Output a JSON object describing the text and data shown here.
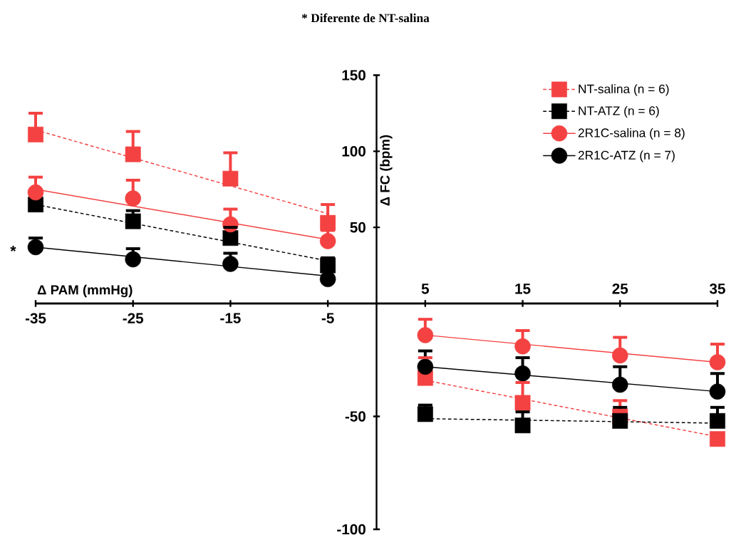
{
  "chart_data": [
    {
      "type": "scatter",
      "title": "* Diferente de NT-salina",
      "xlabel": "Δ PAM (mmHg)",
      "ylabel": "Δ FC (bpm)",
      "annotations": [
        {
          "text": "*",
          "x": -35,
          "y": 37
        }
      ],
      "xlim": [
        -35,
        35
      ],
      "ylim": [
        0,
        150
      ],
      "xticks": [
        -35,
        -25,
        -15,
        -5
      ],
      "yticks": [
        50,
        100,
        150
      ],
      "legend": "top right",
      "series": [
        {
          "name": "NT-salina (n = 6)",
          "color": "#f44242",
          "marker": "square",
          "line_style": "dashed",
          "x": [
            -35,
            -25,
            -15,
            -5
          ],
          "values": [
            111,
            98,
            82,
            53
          ],
          "errors": [
            [
              111,
              125
            ],
            [
              98,
              113
            ],
            [
              82,
              99
            ],
            [
              53,
              65
            ]
          ]
        },
        {
          "name": "NT-ATZ (n = 6)",
          "color": "#000000",
          "marker": "square",
          "line_style": "dashed",
          "x": [
            -35,
            -25,
            -15,
            -5
          ],
          "values": [
            65,
            54,
            43,
            25
          ],
          "errors": [
            null,
            [
              54,
              61
            ],
            [
              43,
              50
            ],
            [
              25,
              30
            ]
          ]
        },
        {
          "name": "2R1C-salina (n = 8)",
          "color": "#f44242",
          "marker": "circle",
          "line_style": "solid",
          "x": [
            -35,
            -25,
            -15,
            -5
          ],
          "values": [
            73,
            69,
            52,
            41
          ],
          "errors": [
            [
              73,
              83
            ],
            [
              69,
              81
            ],
            [
              52,
              62
            ],
            [
              41,
              48
            ]
          ]
        },
        {
          "name": "2R1C-ATZ (n = 7)",
          "color": "#000000",
          "marker": "circle",
          "line_style": "solid",
          "x": [
            -35,
            -25,
            -15,
            -5
          ],
          "values": [
            37,
            29,
            26,
            16
          ],
          "errors": [
            [
              37,
              43
            ],
            [
              29,
              36
            ],
            [
              26,
              33
            ],
            null
          ]
        },
        {
          "type": "line",
          "color": "#f44242",
          "line_style": "dashed",
          "x": [
            -35,
            -5
          ],
          "values": [
            114,
            59
          ]
        },
        {
          "type": "line",
          "color": "#000000",
          "line_style": "dashed",
          "x": [
            -35,
            -5
          ],
          "values": [
            65,
            28
          ]
        },
        {
          "type": "line",
          "color": "#f44242",
          "line_style": "solid",
          "x": [
            -35,
            -5
          ],
          "values": [
            75,
            42
          ]
        },
        {
          "type": "line",
          "color": "#000000",
          "line_style": "solid",
          "x": [
            -35,
            -5
          ],
          "values": [
            37,
            18
          ]
        }
      ]
    },
    {
      "type": "scatter",
      "xlim": [
        -35,
        35
      ],
      "ylim": [
        -100,
        0
      ],
      "xticks": [
        5,
        15,
        25,
        35
      ],
      "yticks": [
        -100,
        -50
      ],
      "series": [
        {
          "color": "#f44242",
          "marker": "square",
          "line_style": "dashed",
          "x": [
            5,
            15,
            25,
            35
          ],
          "values": [
            -33,
            -44,
            -50,
            -60
          ],
          "errors": [
            [
              -33,
              -24
            ],
            [
              -44,
              -35
            ],
            [
              -50,
              -43
            ],
            null
          ]
        },
        {
          "color": "#000000",
          "marker": "square",
          "line_style": "dashed",
          "x": [
            5,
            15,
            25,
            35
          ],
          "values": [
            -49,
            -54,
            -52,
            -52
          ],
          "errors": [
            [
              -49,
              -45
            ],
            [
              -54,
              -48
            ],
            [
              -52,
              -46
            ],
            [
              -52,
              -46
            ]
          ]
        },
        {
          "color": "#f44242",
          "marker": "circle",
          "line_style": "solid",
          "x": [
            5,
            15,
            25,
            35
          ],
          "values": [
            -14,
            -19,
            -23,
            -26
          ],
          "errors": [
            [
              -14,
              -7
            ],
            [
              -19,
              -12
            ],
            [
              -23,
              -15
            ],
            [
              -26,
              -18
            ]
          ]
        },
        {
          "color": "#000000",
          "marker": "circle",
          "line_style": "solid",
          "x": [
            5,
            15,
            25,
            35
          ],
          "values": [
            -28,
            -31,
            -36,
            -39
          ],
          "errors": [
            [
              -28,
              -21
            ],
            [
              -31,
              -24
            ],
            [
              -36,
              -28
            ],
            [
              -39,
              -31
            ]
          ]
        },
        {
          "type": "line",
          "color": "#f44242",
          "line_style": "dashed",
          "x": [
            5,
            35
          ],
          "values": [
            -34,
            -59
          ]
        },
        {
          "type": "line",
          "color": "#000000",
          "line_style": "dashed",
          "x": [
            5,
            35
          ],
          "values": [
            -51,
            -53
          ]
        },
        {
          "type": "line",
          "color": "#f44242",
          "line_style": "solid",
          "x": [
            5,
            35
          ],
          "values": [
            -14,
            -26
          ]
        },
        {
          "type": "line",
          "color": "#000000",
          "line_style": "solid",
          "x": [
            5,
            35
          ],
          "values": [
            -28,
            -39
          ]
        }
      ]
    }
  ]
}
